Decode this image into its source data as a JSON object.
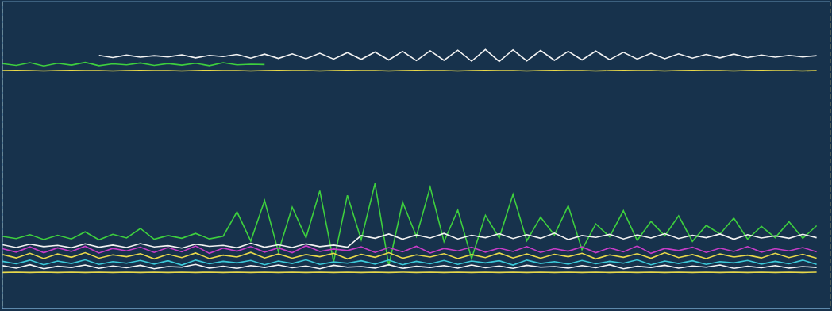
{
  "chart_data": {
    "type": "line",
    "grid": true,
    "tick_labels": false,
    "xlim": [
      0,
      60
    ],
    "xticks": [
      0,
      2.5,
      5,
      7.5,
      10,
      12.5,
      15,
      17.5,
      20,
      22.5,
      25,
      27.5,
      30,
      32.5,
      35,
      37.5,
      40,
      42.5,
      45,
      47.5,
      50,
      52.5,
      55,
      57.5,
      60
    ],
    "ylim": [
      0,
      100
    ],
    "yticks": [
      0,
      2.5,
      5,
      7.5,
      10,
      12.5,
      15,
      17.5,
      20,
      22.5,
      25,
      27.5,
      30,
      32.5,
      35,
      37.5,
      40,
      42.5,
      45,
      47.5,
      50,
      52.5,
      55,
      57.5,
      60,
      62.5,
      65,
      67.5,
      70,
      72.5,
      75,
      77.5,
      80,
      82.5,
      85,
      87.5,
      90,
      92.5,
      95,
      97.5,
      100
    ],
    "x": [
      0,
      1,
      2,
      3,
      4,
      5,
      6,
      7,
      8,
      9,
      10,
      11,
      12,
      13,
      14,
      15,
      16,
      17,
      18,
      19,
      20,
      21,
      22,
      23,
      24,
      25,
      26,
      27,
      28,
      29,
      30,
      31,
      32,
      33,
      34,
      35,
      36,
      37,
      38,
      39,
      40,
      41,
      42,
      43,
      44,
      45,
      46,
      47,
      48,
      49,
      50,
      51,
      52,
      53,
      54,
      55,
      56,
      57,
      58,
      59
    ],
    "series": [
      {
        "color": "#f2f2f2",
        "values": [
          null,
          null,
          null,
          null,
          null,
          null,
          null,
          82.5,
          81.8,
          82.6,
          81.9,
          82.4,
          82.0,
          82.7,
          81.7,
          82.5,
          82.1,
          82.8,
          81.6,
          82.9,
          81.5,
          83.0,
          81.4,
          83.2,
          81.3,
          83.4,
          81.2,
          83.6,
          81.0,
          83.8,
          80.8,
          84.0,
          80.9,
          84.2,
          80.6,
          84.4,
          80.5,
          84.3,
          80.7,
          84.1,
          80.9,
          83.8,
          81.0,
          83.9,
          81.1,
          83.5,
          81.3,
          83.2,
          81.4,
          83.0,
          81.6,
          82.8,
          81.7,
          82.9,
          81.8,
          82.6,
          81.9,
          82.5,
          82.0,
          82.4
        ]
      },
      {
        "color": "#3ecf3e",
        "values": [
          79.8,
          79.2,
          80.1,
          79.0,
          79.9,
          79.3,
          80.2,
          79.1,
          79.7,
          79.4,
          80.0,
          79.2,
          79.8,
          79.3,
          79.9,
          79.1,
          80.1,
          79.4,
          79.6,
          79.5,
          null,
          null,
          null,
          null,
          null,
          null,
          null,
          null,
          null,
          null,
          null,
          null,
          null,
          null,
          null,
          null,
          null,
          null,
          null,
          null,
          null,
          null,
          null,
          null,
          null,
          null,
          null,
          null,
          null,
          null,
          null,
          null,
          null,
          null,
          null,
          null,
          null,
          null,
          null,
          null
        ]
      },
      {
        "color": "#e8d84a",
        "values": [
          77.5,
          77.6,
          77.5,
          77.4,
          77.5,
          77.6,
          77.5,
          77.5,
          77.4,
          77.5,
          77.6,
          77.5,
          77.5,
          77.4,
          77.5,
          77.6,
          77.5,
          77.5,
          77.4,
          77.5,
          77.6,
          77.5,
          77.5,
          77.4,
          77.5,
          77.6,
          77.5,
          77.5,
          77.4,
          77.5,
          77.6,
          77.5,
          77.5,
          77.4,
          77.5,
          77.6,
          77.5,
          77.5,
          77.4,
          77.5,
          77.6,
          77.5,
          77.5,
          77.4,
          77.5,
          77.6,
          77.5,
          77.5,
          77.4,
          77.5,
          77.6,
          77.5,
          77.5,
          77.4,
          77.5,
          77.6,
          77.5,
          77.5,
          77.4,
          77.5
        ]
      },
      {
        "color": "#3ecf3e",
        "values": [
          23.5,
          22.8,
          24.1,
          22.5,
          23.9,
          22.7,
          25.0,
          22.4,
          24.2,
          23.0,
          26.1,
          22.6,
          23.8,
          22.9,
          24.5,
          22.7,
          23.6,
          31.5,
          22.0,
          35.2,
          18.5,
          33.0,
          23.1,
          38.4,
          15.2,
          36.9,
          22.4,
          40.8,
          14.0,
          34.7,
          23.5,
          39.6,
          21.8,
          32.1,
          16.3,
          30.4,
          23.0,
          37.2,
          22.1,
          29.8,
          24.0,
          33.5,
          19.2,
          27.6,
          23.4,
          31.9,
          22.2,
          28.4,
          23.7,
          30.2,
          21.9,
          27.1,
          24.3,
          29.5,
          22.6,
          26.8,
          23.1,
          28.3,
          22.9,
          27.0
        ]
      },
      {
        "color": "#f2f2f2",
        "values": [
          20.8,
          19.9,
          21.0,
          20.2,
          20.6,
          19.8,
          21.1,
          20.0,
          20.7,
          19.9,
          21.2,
          20.1,
          20.5,
          19.7,
          21.0,
          20.3,
          20.6,
          19.8,
          21.3,
          20.0,
          20.8,
          19.9,
          21.1,
          20.2,
          20.7,
          20.0,
          23.8,
          22.9,
          24.3,
          22.6,
          24.0,
          23.0,
          24.5,
          22.7,
          23.9,
          23.1,
          24.4,
          22.8,
          24.1,
          22.9,
          24.6,
          22.5,
          23.8,
          23.2,
          24.2,
          22.7,
          24.0,
          23.0,
          24.4,
          22.8,
          23.9,
          23.1,
          24.3,
          22.6,
          24.1,
          23.0,
          23.7,
          22.9,
          24.2,
          23.1
        ]
      },
      {
        "color": "#c83cc8",
        "values": [
          19.5,
          18.4,
          20.1,
          18.2,
          19.8,
          18.6,
          20.3,
          18.1,
          19.6,
          18.8,
          20.0,
          18.3,
          19.9,
          18.5,
          20.4,
          18.0,
          19.7,
          18.7,
          20.2,
          18.4,
          19.8,
          18.2,
          20.5,
          18.6,
          19.4,
          18.9,
          20.1,
          18.3,
          19.9,
          18.5,
          20.3,
          18.1,
          19.6,
          18.8,
          20.0,
          18.4,
          19.7,
          18.6,
          20.2,
          18.3,
          19.5,
          18.7,
          20.1,
          18.2,
          19.8,
          18.5,
          20.4,
          18.0,
          19.6,
          18.9,
          20.0,
          18.3,
          19.7,
          18.6,
          20.2,
          18.4,
          19.5,
          18.8,
          19.9,
          18.5
        ]
      },
      {
        "color": "#e8d84a",
        "values": [
          17.6,
          16.5,
          18.0,
          16.3,
          17.8,
          16.7,
          18.2,
          16.4,
          17.5,
          16.9,
          17.9,
          16.2,
          17.7,
          16.6,
          18.1,
          16.3,
          17.4,
          16.8,
          18.3,
          16.5,
          17.8,
          16.4,
          17.6,
          16.9,
          18.0,
          16.2,
          17.7,
          16.7,
          18.2,
          16.4,
          17.5,
          16.8,
          17.9,
          16.3,
          17.6,
          16.6,
          18.1,
          16.5,
          17.8,
          16.4,
          17.7,
          16.9,
          18.0,
          16.2,
          17.5,
          16.7,
          17.9,
          16.4,
          18.2,
          16.6,
          17.6,
          16.3,
          17.8,
          16.8,
          17.4,
          16.5,
          18.0,
          16.6,
          17.7,
          16.4
        ]
      },
      {
        "color": "#3cc8d8",
        "values": [
          15.4,
          14.6,
          15.8,
          14.3,
          15.5,
          14.7,
          15.9,
          14.4,
          15.3,
          14.8,
          15.7,
          14.5,
          15.6,
          14.2,
          15.8,
          14.6,
          15.4,
          14.9,
          15.7,
          14.3,
          15.5,
          14.7,
          15.9,
          14.4,
          15.2,
          14.8,
          15.6,
          14.5,
          15.8,
          14.3,
          15.4,
          14.6,
          15.7,
          14.4,
          15.5,
          14.9,
          15.6,
          14.2,
          15.8,
          14.7,
          15.3,
          14.5,
          15.7,
          14.6,
          15.4,
          14.8,
          15.9,
          14.3,
          15.5,
          14.7,
          15.6,
          14.4,
          15.3,
          14.9,
          15.7,
          14.5,
          15.4,
          14.6,
          15.8,
          14.4
        ]
      },
      {
        "color": "#f2f2f2",
        "values": [
          14.0,
          13.2,
          14.3,
          13.0,
          13.8,
          13.4,
          14.2,
          13.1,
          13.9,
          13.3,
          14.1,
          13.0,
          13.7,
          13.5,
          14.4,
          13.2,
          13.8,
          13.1,
          14.0,
          13.4,
          14.2,
          13.3,
          13.9,
          13.0,
          14.1,
          13.5,
          13.7,
          13.2,
          14.3,
          13.1,
          13.8,
          13.4,
          14.0,
          13.2,
          14.2,
          13.3,
          13.9,
          13.1,
          14.1,
          13.5,
          13.7,
          13.2,
          14.0,
          13.3,
          14.3,
          13.0,
          13.8,
          13.4,
          14.1,
          13.2,
          13.9,
          13.5,
          14.2,
          13.1,
          13.8,
          13.3,
          14.0,
          13.2,
          13.7,
          13.4
        ]
      },
      {
        "color": "#e8d84a",
        "values": [
          11.8,
          11.9,
          11.8,
          11.9,
          11.8,
          11.9,
          11.8,
          11.9,
          11.8,
          11.9,
          11.8,
          11.9,
          11.8,
          11.9,
          11.8,
          11.9,
          11.8,
          11.9,
          11.8,
          11.9,
          11.8,
          11.9,
          11.8,
          11.9,
          11.8,
          11.9,
          11.8,
          11.9,
          11.8,
          11.9,
          11.8,
          11.9,
          11.8,
          11.9,
          11.8,
          11.9,
          11.8,
          11.9,
          11.8,
          11.9,
          11.8,
          11.9,
          11.8,
          11.9,
          11.8,
          11.9,
          11.8,
          11.9,
          11.8,
          11.9,
          11.8,
          11.9,
          11.8,
          11.9,
          11.8,
          11.9,
          11.8,
          11.9,
          11.8,
          11.9
        ]
      }
    ]
  }
}
